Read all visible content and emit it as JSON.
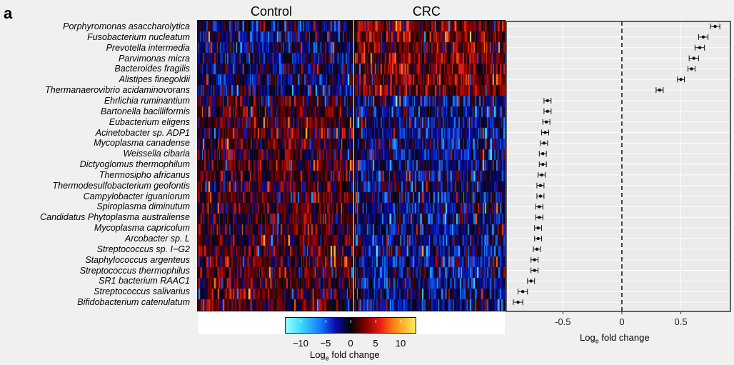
{
  "panel_label": "a",
  "groups": [
    "Control",
    "CRC"
  ],
  "colorbar": {
    "ticks": [
      "−10",
      "−5",
      "0",
      "5",
      "10"
    ],
    "tick_values": [
      -10,
      -5,
      0,
      5,
      10
    ],
    "range": [
      -13,
      13
    ],
    "label_prefix": "Log",
    "label_sub": "e",
    "label_suffix": " fold change"
  },
  "chart_data": {
    "type": "scatter",
    "subtype": "forest plot with heatmap",
    "xlabel_prefix": "Log",
    "xlabel_sub": "e",
    "xlabel_suffix": " fold change",
    "xlim": [
      -0.98,
      0.92
    ],
    "xticks": [
      -0.5,
      0,
      0.5
    ],
    "xtick_labels": [
      "-0.5",
      "0",
      "0.5"
    ],
    "reference_line": 0,
    "grid": true,
    "categories": [
      "Porphyromonas asaccharolytica",
      "Fusobacterium nucleatum",
      "Prevotella intermedia",
      "Parvimonas micra",
      "Bacteroides fragilis",
      "Alistipes finegoldii",
      "Thermanaerovibrio acidaminovorans",
      "Ehrlichia ruminantium",
      "Bartonella bacilliformis",
      "Eubacterium eligens",
      "Acinetobacter sp. ADP1",
      "Mycoplasma canadense",
      "Weissella cibaria",
      "Dictyoglomus thermophilum",
      "Thermosipho africanus",
      "Thermodesulfobacterium geofontis",
      "Campylobacter iguaniorum",
      "Spiroplasma diminutum",
      "Candidatus Phytoplasma australiense",
      "Mycoplasma capricolum",
      "Arcobacter sp. L",
      "Streptococcus sp. I−G2",
      "Staphylococcus argenteus",
      "Streptococcus thermophilus",
      "SR1 bacterium RAAC1",
      "Streptococcus salivarius",
      "Bifidobacterium catenulatum"
    ],
    "values": [
      0.79,
      0.69,
      0.66,
      0.61,
      0.59,
      0.5,
      0.32,
      -0.63,
      -0.63,
      -0.64,
      -0.65,
      -0.66,
      -0.67,
      -0.67,
      -0.68,
      -0.69,
      -0.69,
      -0.7,
      -0.7,
      -0.71,
      -0.71,
      -0.72,
      -0.74,
      -0.74,
      -0.77,
      -0.84,
      -0.88
    ],
    "ci_low": [
      0.75,
      0.65,
      0.62,
      0.57,
      0.56,
      0.47,
      0.29,
      -0.66,
      -0.66,
      -0.67,
      -0.68,
      -0.69,
      -0.7,
      -0.7,
      -0.71,
      -0.72,
      -0.72,
      -0.73,
      -0.73,
      -0.74,
      -0.74,
      -0.75,
      -0.77,
      -0.77,
      -0.8,
      -0.88,
      -0.92
    ],
    "ci_high": [
      0.83,
      0.73,
      0.7,
      0.65,
      0.62,
      0.53,
      0.35,
      -0.6,
      -0.6,
      -0.61,
      -0.62,
      -0.63,
      -0.64,
      -0.64,
      -0.65,
      -0.66,
      -0.66,
      -0.67,
      -0.67,
      -0.68,
      -0.68,
      -0.69,
      -0.71,
      -0.71,
      -0.74,
      -0.8,
      -0.84
    ]
  }
}
